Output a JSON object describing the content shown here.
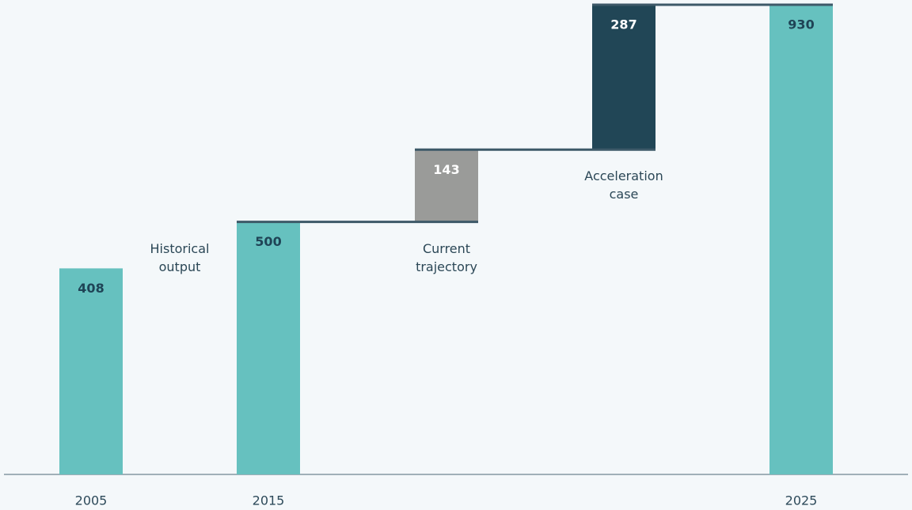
{
  "chart_data": {
    "type": "waterfall",
    "categories": [
      "2005",
      "2015",
      null,
      null,
      "2025"
    ],
    "values": [
      408,
      500,
      143,
      287,
      930
    ],
    "measure": [
      "total",
      "total",
      "increase",
      "increase",
      "total"
    ],
    "colors": [
      "#66c1bf",
      "#66c1bf",
      "#9a9b99",
      "#214656",
      "#66c1bf"
    ],
    "step_labels": [
      "Historical output",
      "Current trajectory",
      "Acceleration case"
    ],
    "ylim": [
      0,
      930
    ]
  }
}
